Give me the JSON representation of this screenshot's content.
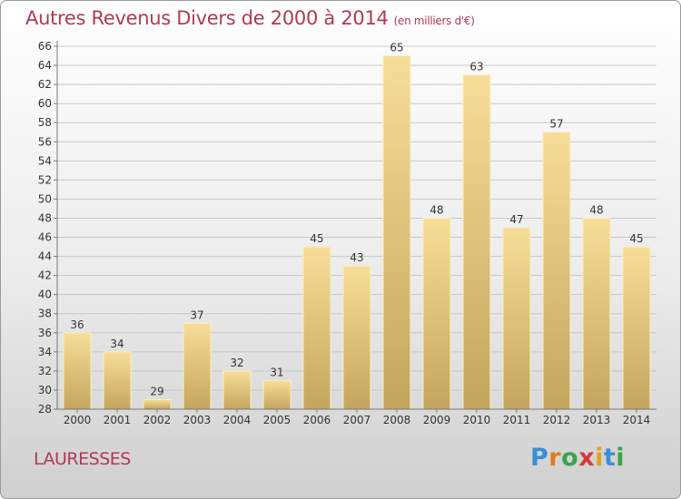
{
  "header": {
    "title": "Autres Revenus Divers de 2000 à 2014",
    "subtitle": "(en milliers d'€)"
  },
  "commune": "LAURESSES",
  "logo": {
    "text": "Proxiti",
    "letters": [
      "P",
      "r",
      "o",
      "x",
      "i",
      "t",
      "i"
    ],
    "colors": [
      "#3a8fd6",
      "#e07b1f",
      "#3aa34a",
      "#d63a3a",
      "#e0a21f",
      "#3a8fd6",
      "#3aa34a"
    ]
  },
  "chart_data": {
    "type": "bar",
    "title": "Autres Revenus Divers de 2000 à 2014",
    "subtitle": "(en milliers d'€)",
    "categories": [
      "2000",
      "2001",
      "2002",
      "2003",
      "2004",
      "2005",
      "2006",
      "2007",
      "2008",
      "2009",
      "2010",
      "2011",
      "2012",
      "2013",
      "2014"
    ],
    "values": [
      36,
      34,
      29,
      37,
      32,
      31,
      45,
      43,
      65,
      48,
      63,
      47,
      57,
      48,
      45
    ],
    "ylim": [
      28,
      66
    ],
    "ytick_step": 2,
    "grid": true,
    "legend": "none",
    "bar_color": "#d4b56a",
    "grid_color": "#c8c8c8",
    "axis_color": "#777777"
  }
}
